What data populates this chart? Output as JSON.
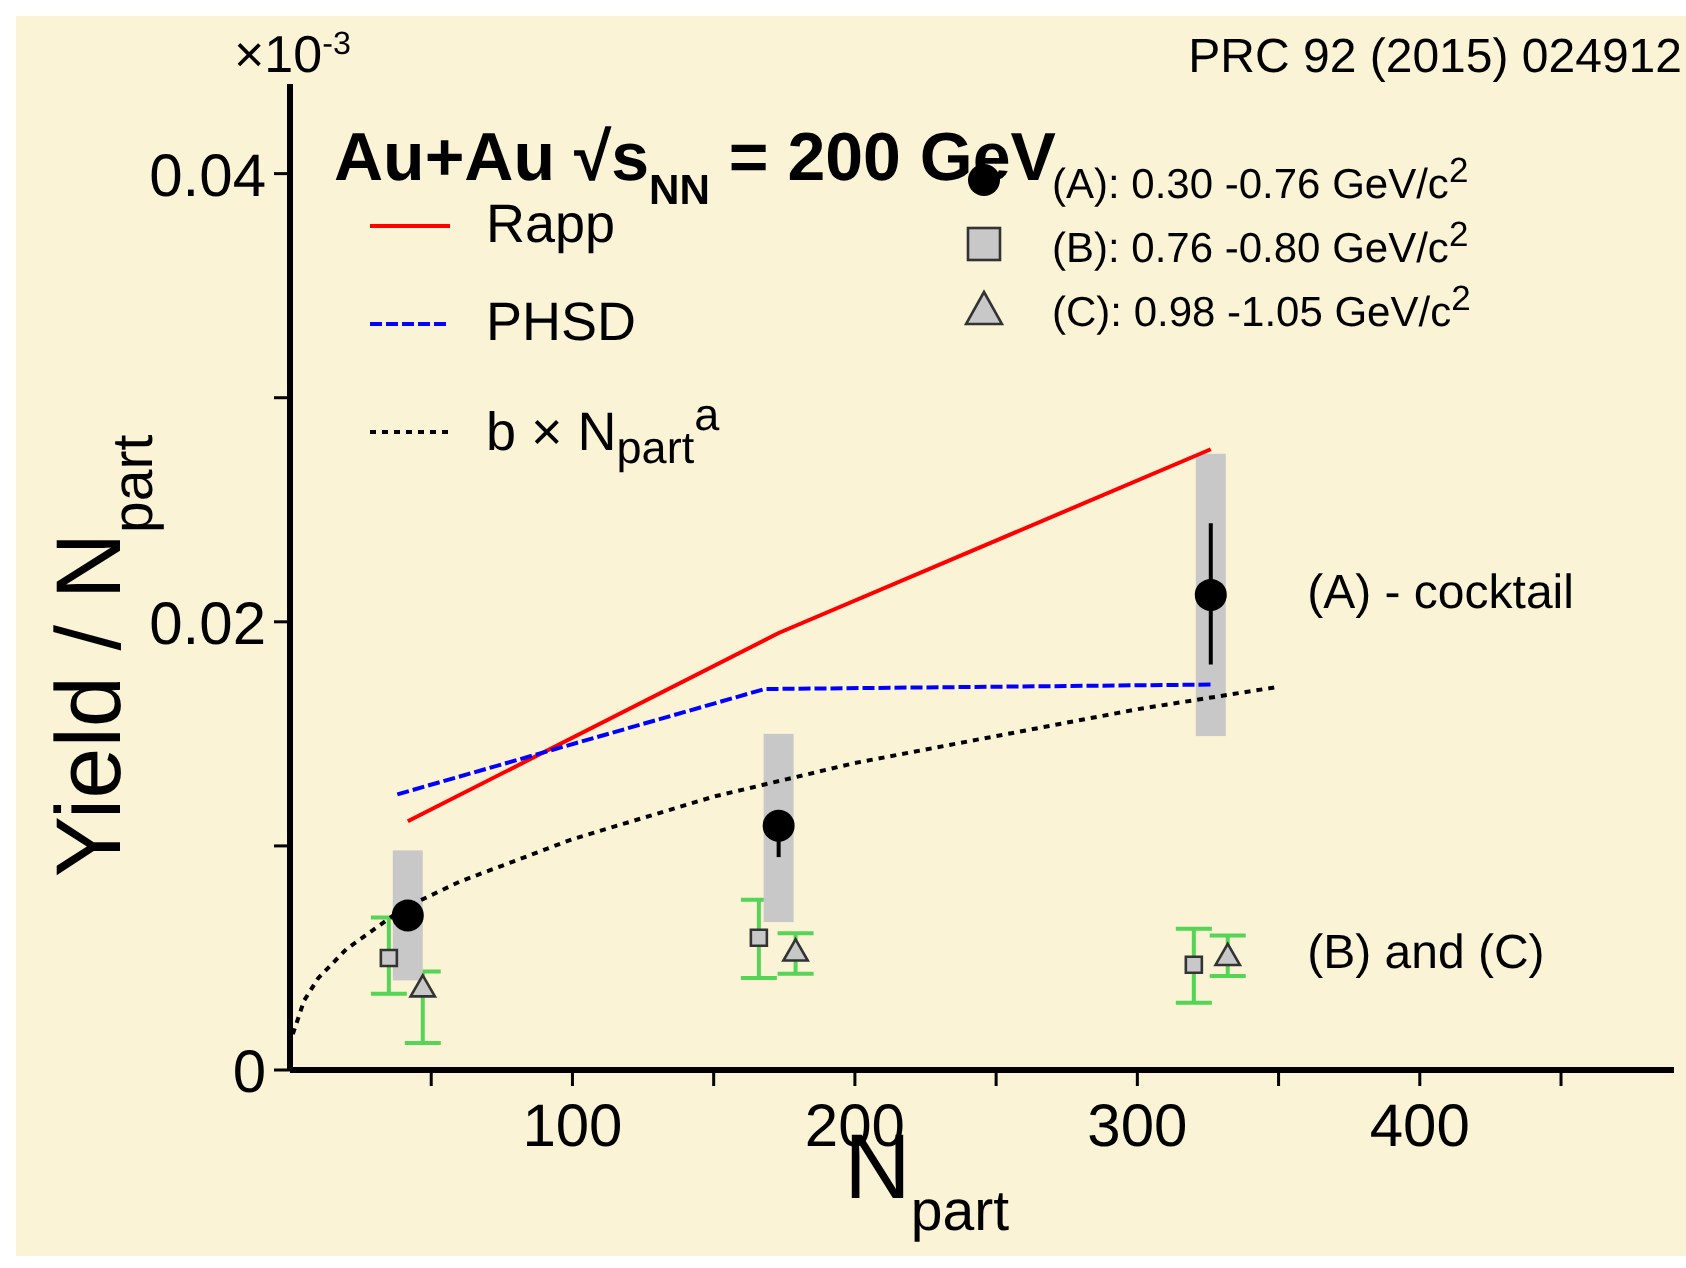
{
  "chart_data": {
    "type": "scatter",
    "title": "Au+Au  √s$_{NN}$ = 200 GeV",
    "xlabel": "N$_{part}$",
    "ylabel": "Yield / N$_{part}$",
    "annotations": [
      "PRC 92 (2015) 024912",
      "×10$^{-3}$",
      "(A) - cocktail",
      "(B) and (C)"
    ],
    "xlim": [
      0,
      490
    ],
    "xticks": [
      {
        "value": 50,
        "label": null
      },
      100,
      {
        "value": 150,
        "label": null
      },
      200,
      {
        "value": 250,
        "label": null
      },
      300,
      {
        "value": 350,
        "label": null
      },
      400,
      {
        "value": 450,
        "label": null
      }
    ],
    "ylim": [
      0,
      0.044
    ],
    "yticks": [
      0,
      {
        "value": 0.01,
        "label": null
      },
      0.02,
      {
        "value": 0.03,
        "label": null
      },
      0.04
    ],
    "legend": "top",
    "grid": false,
    "series": [
      {
        "name": "Rapp",
        "type": "line",
        "color": "#ff0000",
        "line_style": "solid",
        "x": [
          41.7,
          173,
          326
        ],
        "values": [
          0.0111,
          0.0195,
          0.0277
        ]
      },
      {
        "name": "PHSD",
        "type": "line",
        "color": "#0000ff",
        "line_style": "dashed",
        "x": [
          38,
          168,
          326
        ],
        "values": [
          0.0123,
          0.017,
          0.0172
        ]
      },
      {
        "name": "b × N$_{part}$$^{a}$",
        "type": "line",
        "color": "#000000",
        "line_style": "dotted",
        "x": [
          1,
          5,
          10,
          20,
          40,
          60,
          100,
          150,
          200,
          250,
          300,
          350
        ],
        "values": [
          0.0016,
          0.0031,
          0.0041,
          0.0054,
          0.0072,
          0.0084,
          0.0103,
          0.0122,
          0.0137,
          0.0149,
          0.0161,
          0.0171
        ]
      },
      {
        "type": "bar",
        "color": "#c8c8c8",
        "x": [
          41.7,
          173,
          326
        ],
        "base": [
          0.004,
          0.0066,
          0.0149
        ],
        "values": [
          0.0058,
          0.0084,
          0.0126
        ]
      },
      {
        "name": "(A): 0.30 -0.76 GeV/c$^{2}$",
        "marker": "circle",
        "color": "#000000",
        "x": [
          41.7,
          173,
          326
        ],
        "values": [
          0.0069,
          0.0109,
          0.0212
        ],
        "errors": [
          null,
          [
            0.0095,
            0.0115
          ],
          [
            0.0181,
            0.0244
          ]
        ]
      },
      {
        "name": "(B): 0.76 -0.80 GeV/c$^{2}$",
        "marker": "square",
        "color": "#c8c8c8",
        "x": [
          35,
          166,
          320
        ],
        "values": [
          0.005,
          0.0059,
          0.0047
        ],
        "errors": [
          [
            0.0034,
            0.0068
          ],
          [
            0.0041,
            0.0076
          ],
          [
            0.003,
            0.0063
          ]
        ]
      },
      {
        "name": "(C): 0.98 -1.05 GeV/c$^{2}$",
        "marker": "triangle",
        "color": "#c8c8c8",
        "x": [
          47,
          179,
          332
        ],
        "values": [
          0.0036,
          0.0052,
          0.005
        ],
        "errors": [
          [
            0.0012,
            0.0044
          ],
          [
            0.0043,
            0.0061
          ],
          [
            0.0042,
            0.006
          ]
        ]
      }
    ]
  }
}
